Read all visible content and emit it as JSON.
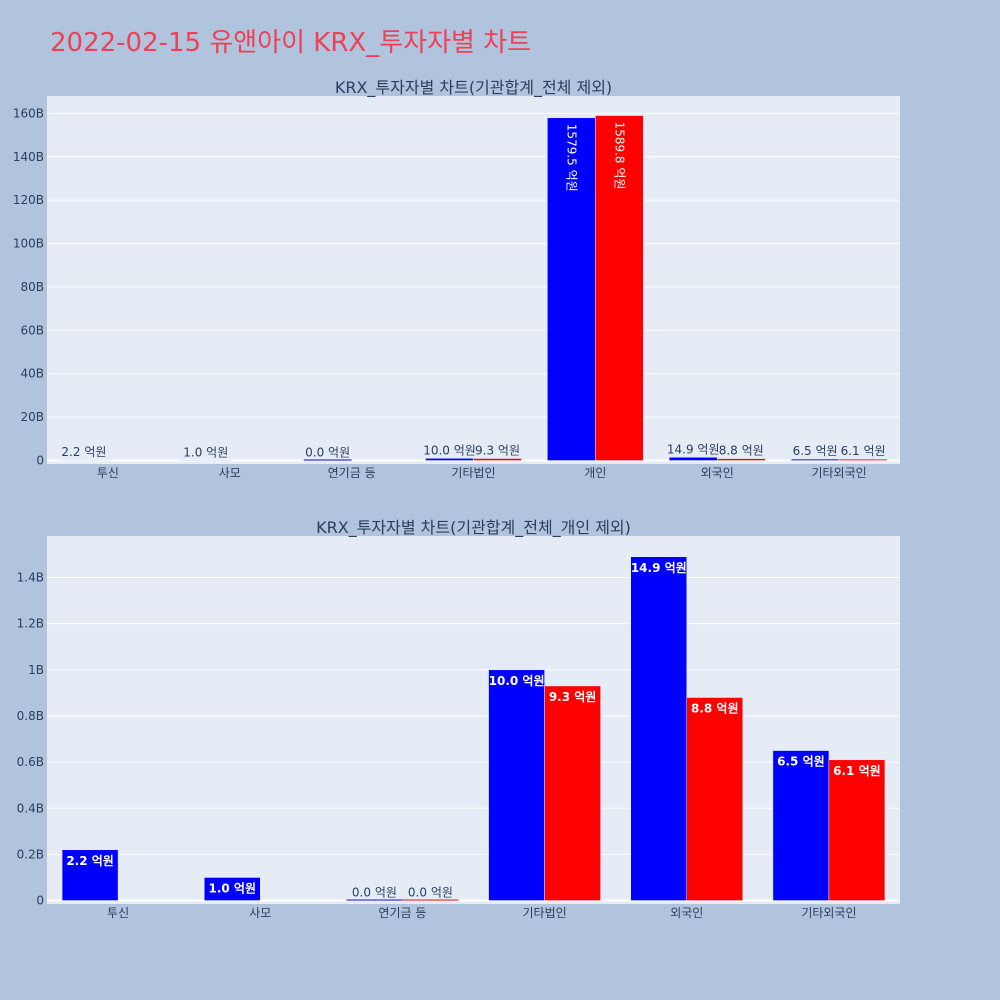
{
  "page": {
    "title": "2022-02-15 유앤아이 KRX_투자자별 차트"
  },
  "colors": {
    "background": "#b0c4de",
    "plot_bg": "#e5ecf6",
    "grid": "#ffffff",
    "series1": "#0000ff",
    "series2": "#ff0000",
    "title": "#ef4056",
    "text": "#2a3f5f"
  },
  "chart_data": [
    {
      "type": "bar",
      "title": "KRX_투자자별 차트(기관합계_전체 제외)",
      "categories": [
        "투신",
        "사모",
        "연기금 등",
        "기타법인",
        "개인",
        "외국인",
        "기타외국인"
      ],
      "series": [
        {
          "values": [
            220000000,
            100000000,
            0,
            1000000000,
            157950000000,
            1490000000,
            650000000
          ],
          "labels": [
            "2.2 억원",
            "1.0 억원",
            "0.0 억원",
            "10.0 억원",
            "1579.5 억원",
            "14.9 억원",
            "6.5 억원"
          ]
        },
        {
          "values": [
            0,
            0,
            0,
            930000000,
            158980000000,
            880000000,
            610000000
          ],
          "labels": [
            "",
            "",
            "",
            "9.3 억원",
            "1589.8 억원",
            "8.8 억원",
            "6.1 억원"
          ]
        }
      ],
      "ylim": [
        -1600000000,
        168000000000
      ],
      "yticks": [
        0,
        20000000000,
        40000000000,
        60000000000,
        80000000000,
        100000000000,
        120000000000,
        140000000000,
        160000000000
      ],
      "ytick_labels": [
        "0",
        "20B",
        "40B",
        "60B",
        "80B",
        "100B",
        "120B",
        "140B",
        "160B"
      ],
      "grid": true
    },
    {
      "type": "bar",
      "title": "KRX_투자자별 차트(기관합계_전체_개인 제외)",
      "categories": [
        "투신",
        "사모",
        "연기금 등",
        "기타법인",
        "외국인",
        "기타외국인"
      ],
      "series": [
        {
          "values": [
            220000000,
            100000000,
            0,
            1000000000,
            1490000000,
            650000000
          ],
          "labels": [
            "2.2 억원",
            "1.0 억원",
            "0.0 억원",
            "10.0 억원",
            "14.9 억원",
            "6.5 억원"
          ]
        },
        {
          "values": [
            0,
            0,
            0,
            930000000,
            880000000,
            610000000
          ],
          "labels": [
            "",
            "",
            "0.0 억원",
            "9.3 억원",
            "8.8 억원",
            "6.1 억원"
          ]
        }
      ],
      "ylim": [
        -15000000,
        1580000000
      ],
      "yticks": [
        0,
        200000000,
        400000000,
        600000000,
        800000000,
        1000000000,
        1200000000,
        1400000000
      ],
      "ytick_labels": [
        "0",
        "0.2B",
        "0.4B",
        "0.6B",
        "0.8B",
        "1B",
        "1.2B",
        "1.4B"
      ],
      "grid": true
    }
  ]
}
